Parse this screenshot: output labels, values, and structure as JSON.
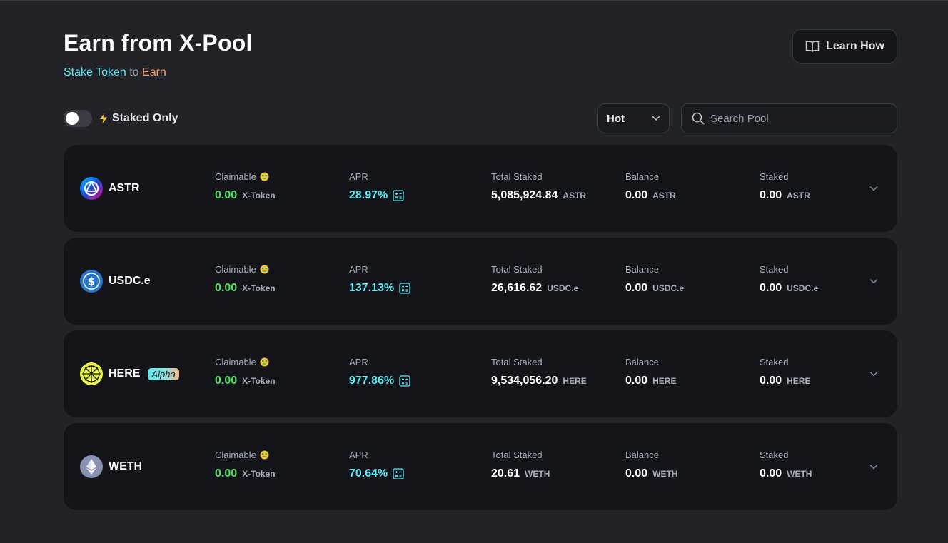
{
  "header": {
    "title": "Earn from X-Pool",
    "subtitle_stake": "Stake Token",
    "subtitle_to": "to",
    "subtitle_earn": "Earn",
    "learn_how": "Learn How"
  },
  "filters": {
    "staked_only_label": "Staked Only",
    "staked_only_on": false,
    "sort_value": "Hot",
    "search_placeholder": "Search Pool"
  },
  "labels": {
    "claimable": "Claimable",
    "apr": "APR",
    "total_staked": "Total Staked",
    "balance": "Balance",
    "staked": "Staked"
  },
  "colors": {
    "background": "#222328",
    "card": "#14151b",
    "claimable_green": "#4ee25d",
    "apr_cyan": "#5ee8f0",
    "earn_orange": "#f0a06a"
  },
  "pools": [
    {
      "token": "ASTR",
      "icon": "astar-logo-icon",
      "badge": "",
      "claimable": "0.00",
      "claimable_unit": "X-Token",
      "apr": "28.97%",
      "total_staked": "5,085,924.84",
      "total_staked_unit": "ASTR",
      "balance": "0.00",
      "balance_unit": "ASTR",
      "staked": "0.00",
      "staked_unit": "ASTR"
    },
    {
      "token": "USDC.e",
      "icon": "usdc-logo-icon",
      "badge": "",
      "claimable": "0.00",
      "claimable_unit": "X-Token",
      "apr": "137.13%",
      "total_staked": "26,616.62",
      "total_staked_unit": "USDC.e",
      "balance": "0.00",
      "balance_unit": "USDC.e",
      "staked": "0.00",
      "staked_unit": "USDC.e"
    },
    {
      "token": "HERE",
      "icon": "here-logo-icon",
      "badge": "Alpha",
      "claimable": "0.00",
      "claimable_unit": "X-Token",
      "apr": "977.86%",
      "total_staked": "9,534,056.20",
      "total_staked_unit": "HERE",
      "balance": "0.00",
      "balance_unit": "HERE",
      "staked": "0.00",
      "staked_unit": "HERE"
    },
    {
      "token": "WETH",
      "icon": "ethereum-logo-icon",
      "badge": "",
      "claimable": "0.00",
      "claimable_unit": "X-Token",
      "apr": "70.64%",
      "total_staked": "20.61",
      "total_staked_unit": "WETH",
      "balance": "0.00",
      "balance_unit": "WETH",
      "staked": "0.00",
      "staked_unit": "WETH"
    }
  ]
}
